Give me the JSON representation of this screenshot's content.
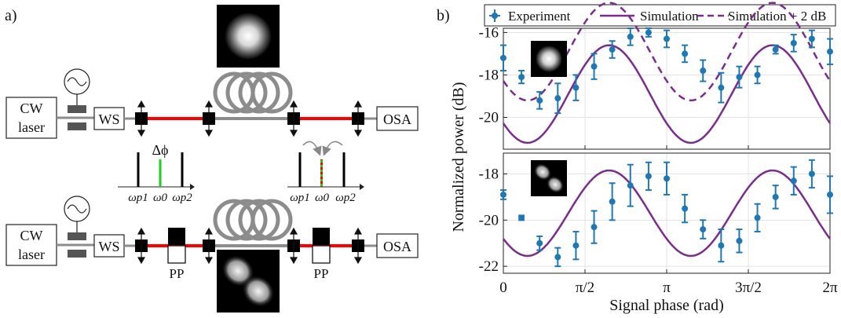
{
  "panel_a": {
    "label": "a)",
    "setup_top": {
      "laser_line1": "CW",
      "laser_line2": "laser",
      "ws": "WS",
      "osa": "OSA"
    },
    "setup_bottom": {
      "laser_line1": "CW",
      "laser_line2": "laser",
      "ws": "WS",
      "osa": "OSA",
      "pp_left": "PP",
      "pp_right": "PP"
    },
    "spectrum_left": {
      "delta": "Δϕ",
      "w_p1": "ωp1",
      "w_0": "ω0",
      "w_p2": "ωp2"
    },
    "spectrum_right": {
      "w_p1": "ωp1",
      "w_0": "ω0",
      "w_p2": "ωp2"
    },
    "colors": {
      "fiber_red": "#ff0000",
      "signal_green": "#22cc22",
      "fiber_grey": "#8c8c8c"
    }
  },
  "panel_b": {
    "label": "b)",
    "legend": {
      "experiment": "Experiment",
      "simulation": "Simulation",
      "simulation_plus": "Simulation + 2 dB"
    }
  },
  "chart_data": [
    {
      "type": "line",
      "panel": "top",
      "xlabel": "Signal phase (rad)",
      "ylabel": "Normalized power (dB)",
      "xlim": [
        0,
        6.2832
      ],
      "ylim": [
        -21.5,
        -15.8
      ],
      "yticks": [
        -20,
        -18,
        -16
      ],
      "ytick_labels": [
        "-20",
        "-18",
        "-16"
      ],
      "grid": true,
      "legend_position": "top",
      "colors": {
        "experiment": "#1f77b4",
        "simulation": "#7b2d8e"
      },
      "experiment": {
        "x": [
          0,
          0.349,
          0.698,
          1.047,
          1.396,
          1.745,
          2.094,
          2.443,
          2.793,
          3.142,
          3.491,
          3.84,
          4.189,
          4.538,
          4.887,
          5.236,
          5.585,
          5.934,
          6.283
        ],
        "y": [
          -17.2,
          -18.1,
          -19.2,
          -19.1,
          -18.6,
          -17.6,
          -16.8,
          -16.2,
          -16.0,
          -16.3,
          -17.0,
          -17.8,
          -18.6,
          -18.1,
          -18.0,
          -16.8,
          -16.5,
          -16.3,
          -16.9
        ],
        "err": [
          0.6,
          0.3,
          0.4,
          0.7,
          0.6,
          0.6,
          0.4,
          0.4,
          0.2,
          0.4,
          0.4,
          0.5,
          0.7,
          0.5,
          0.4,
          0.2,
          0.4,
          0.4,
          0.6
        ]
      },
      "series": [
        {
          "name": "Simulation",
          "style": "solid",
          "offset": -18.9,
          "amp": 2.3,
          "phase": 4.07
        },
        {
          "name": "Simulation + 2 dB",
          "style": "dashed",
          "offset": -16.9,
          "amp": 2.3,
          "phase": 4.07
        }
      ]
    },
    {
      "type": "line",
      "panel": "bottom",
      "xlabel": "Signal phase (rad)",
      "ylabel": "Normalized power (dB)",
      "xlim": [
        0,
        6.2832
      ],
      "ylim": [
        -22.3,
        -17.1
      ],
      "xticks": [
        0,
        1.5708,
        3.1416,
        4.7124,
        6.2832
      ],
      "xtick_labels": [
        "0",
        "π/2",
        "π",
        "3π/2",
        "2π"
      ],
      "yticks": [
        -22,
        -20,
        -18
      ],
      "ytick_labels": [
        "-22",
        "-20",
        "-18"
      ],
      "grid": true,
      "experiment": {
        "x": [
          0,
          0.349,
          0.698,
          1.047,
          1.396,
          1.745,
          2.094,
          2.443,
          2.793,
          3.142,
          3.491,
          3.84,
          4.189,
          4.538,
          4.887,
          5.236,
          5.585,
          5.934,
          6.283
        ],
        "y": [
          -18.9,
          -19.9,
          -21.0,
          -21.6,
          -21.1,
          -20.3,
          -19.2,
          -18.5,
          -18.1,
          -18.2,
          -19.5,
          -20.4,
          -21.1,
          -20.9,
          -19.9,
          -19.0,
          -18.3,
          -18.0,
          -18.9
        ],
        "err": [
          0.2,
          0.1,
          0.3,
          0.4,
          0.6,
          0.7,
          0.8,
          0.9,
          0.6,
          0.7,
          0.6,
          0.4,
          0.7,
          0.5,
          0.6,
          0.5,
          0.6,
          0.6,
          0.8
        ]
      },
      "series": [
        {
          "name": "Simulation",
          "style": "solid",
          "offset": -19.7,
          "amp": 1.85,
          "phase": 4.07
        }
      ]
    }
  ]
}
